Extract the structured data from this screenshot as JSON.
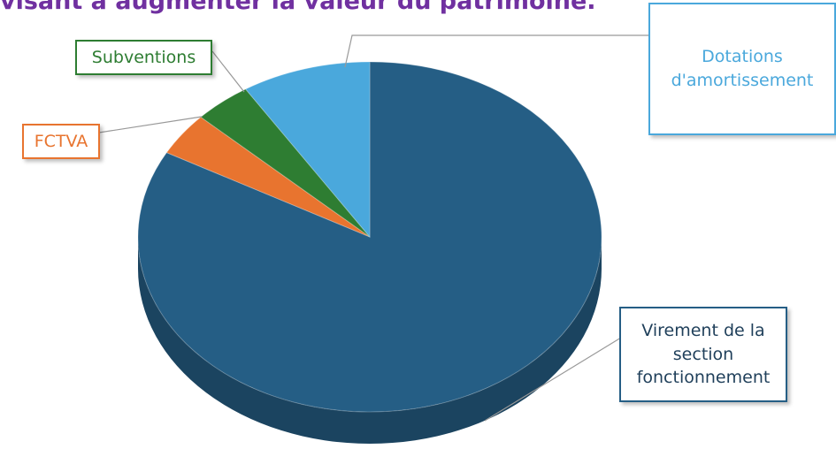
{
  "chart_data": {
    "type": "pie",
    "title": "visant à augmenter la valeur du patrimoine.",
    "categories": [
      "Virement de la section fonctionnement",
      "FCTVA",
      "Subventions",
      "Dotations d'amortissement"
    ],
    "values": [
      83,
      4,
      4,
      9
    ],
    "colors": [
      "#255e85",
      "#e8742f",
      "#2e7d32",
      "#4aa8dc"
    ]
  }
}
